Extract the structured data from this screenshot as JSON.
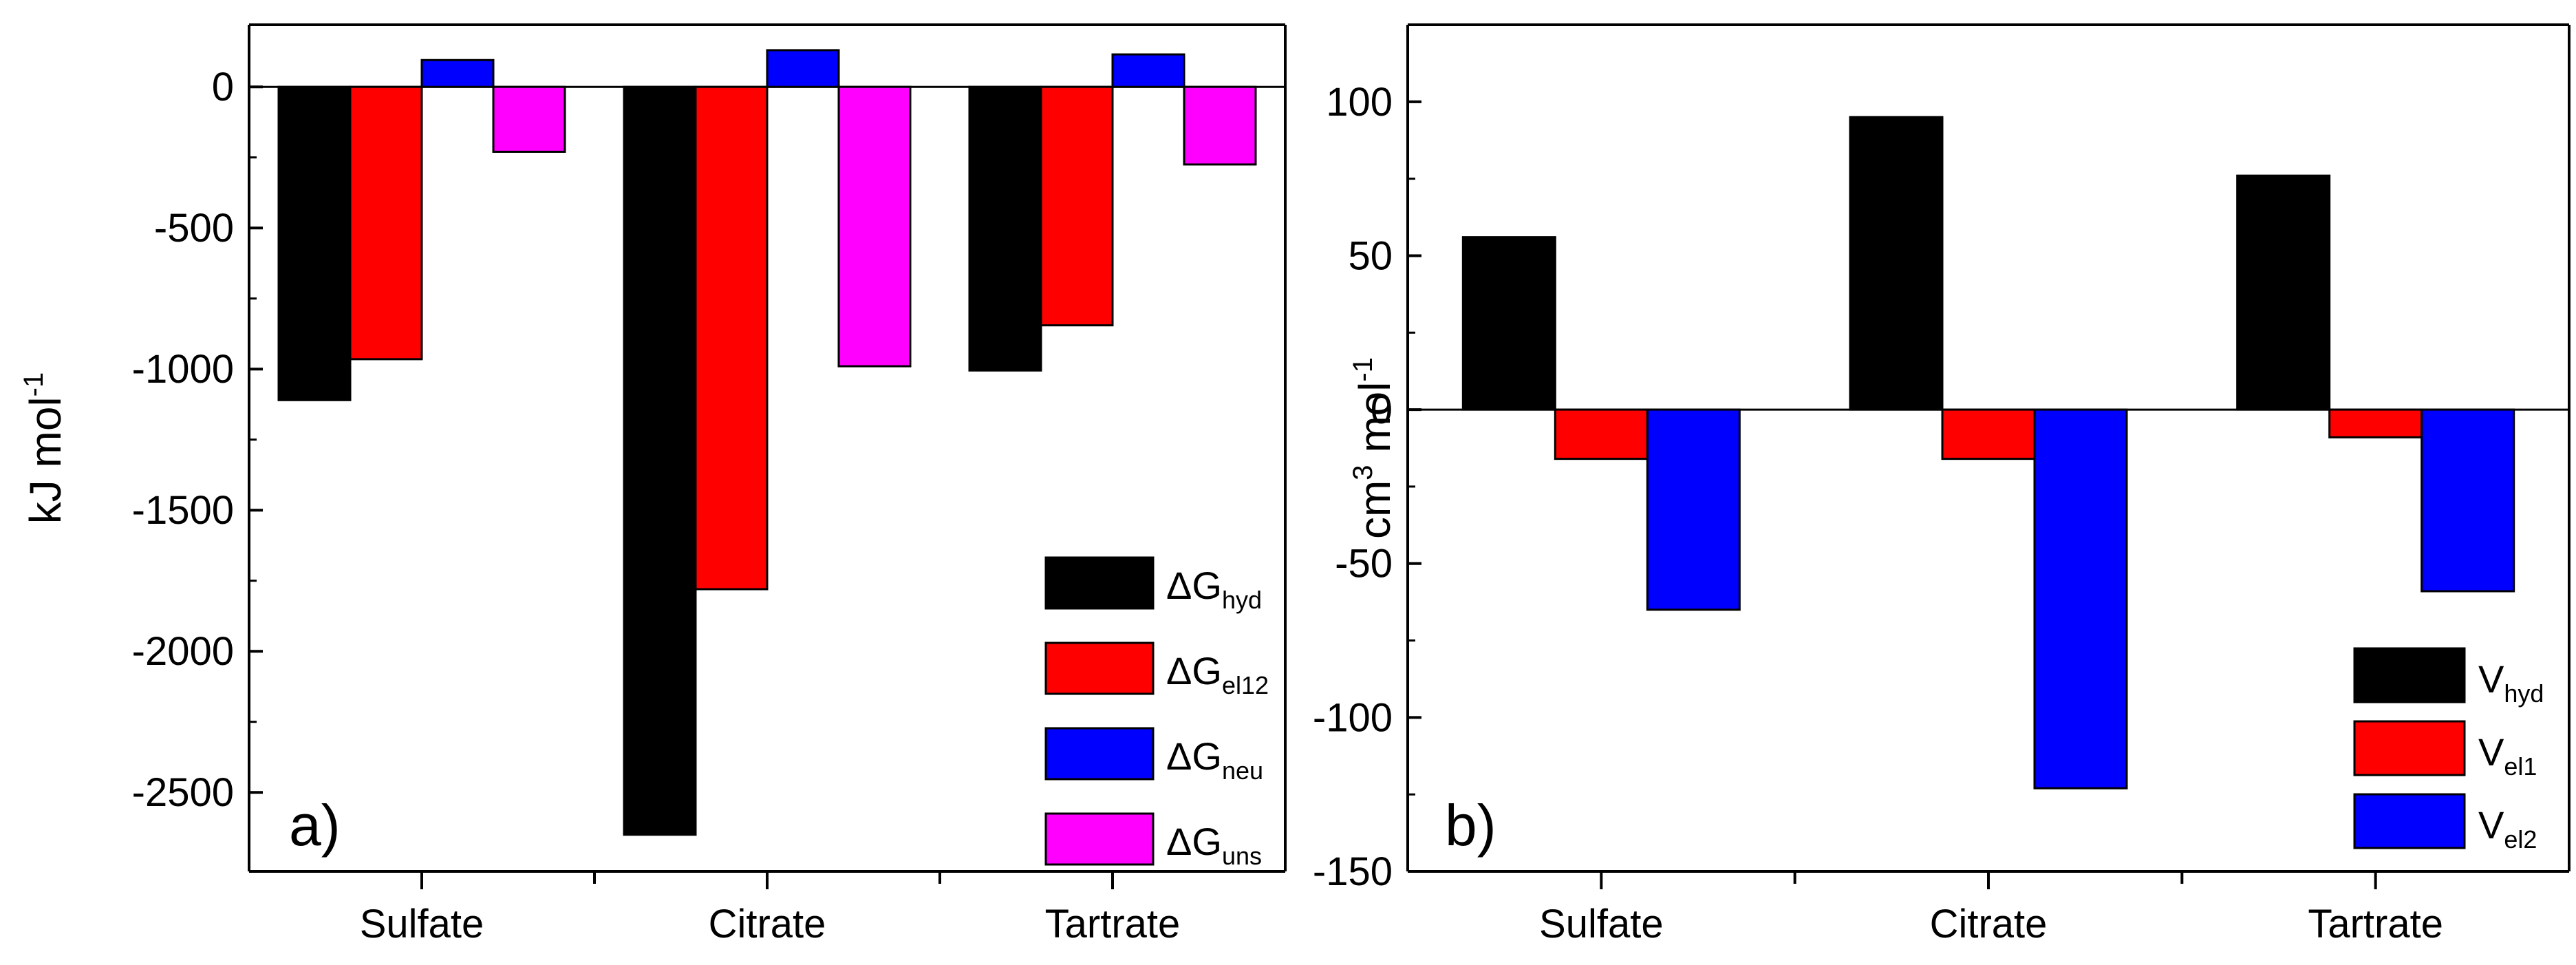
{
  "chart_data": [
    {
      "type": "bar",
      "panel_label": "a)",
      "ylabel": "kJ mol",
      "ylabel_sup": "-1",
      "ylim": [
        -2780,
        220
      ],
      "yticks": [
        0,
        -500,
        -1000,
        -1500,
        -2000,
        -2500
      ],
      "categories": [
        "Sulfate",
        "Citrate",
        "Tartrate"
      ],
      "legend_position": "bottom-right",
      "series": [
        {
          "name": "ΔG",
          "sub": "hyd",
          "color": "#000000",
          "values": [
            -1110,
            -2650,
            -1005
          ]
        },
        {
          "name": "ΔG",
          "sub": "el12",
          "color": "#ff0000",
          "values": [
            -965,
            -1780,
            -845
          ]
        },
        {
          "name": "ΔG",
          "sub": "neu",
          "color": "#0000ff",
          "values": [
            95,
            130,
            115
          ]
        },
        {
          "name": "ΔG",
          "sub": "uns",
          "color": "#ff00ff",
          "values": [
            -230,
            -990,
            -275
          ]
        }
      ]
    },
    {
      "type": "bar",
      "panel_label": "b)",
      "ylabel": "cm",
      "ylabel_sup": "3",
      "ylabel_suffix": " mol",
      "ylabel_sup2": "-1",
      "ylim": [
        -150,
        125
      ],
      "yticks": [
        100,
        50,
        0,
        -50,
        -100,
        -150
      ],
      "categories": [
        "Sulfate",
        "Citrate",
        "Tartrate"
      ],
      "legend_position": "bottom-right",
      "series": [
        {
          "name": "V",
          "sub": "hyd",
          "color": "#000000",
          "values": [
            56,
            95,
            76
          ]
        },
        {
          "name": "V",
          "sub": "el1",
          "color": "#ff0000",
          "values": [
            -16,
            -16,
            -9
          ]
        },
        {
          "name": "V",
          "sub": "el2",
          "color": "#0000ff",
          "values": [
            -65,
            -123,
            -59
          ]
        }
      ]
    }
  ]
}
